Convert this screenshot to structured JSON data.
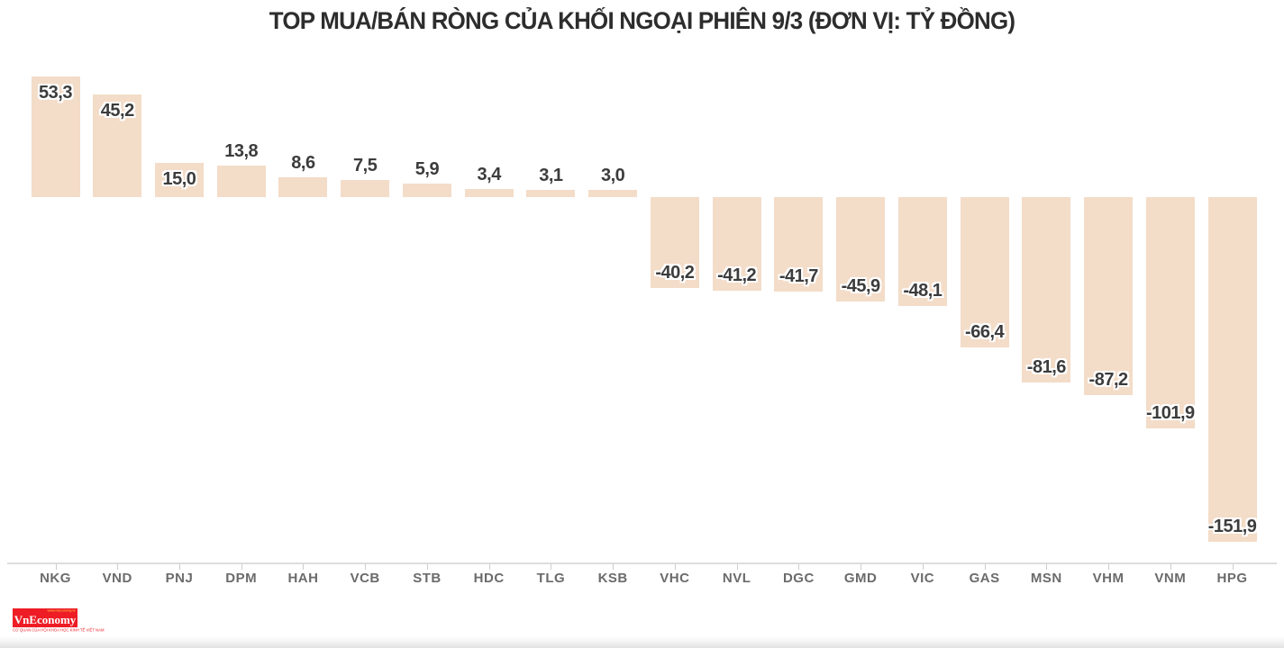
{
  "title": "TOP MUA/BÁN RÒNG CỦA KHỐI NGOẠI PHIÊN 9/3 (ĐƠN VỊ: TỶ ĐỒNG)",
  "chart_data": {
    "type": "bar",
    "title": "TOP MUA/BÁN RÒNG CỦA KHỐI NGOẠI PHIÊN 9/3 (ĐƠN VỊ: TỶ ĐỒNG)",
    "categories": [
      "NKG",
      "VND",
      "PNJ",
      "DPM",
      "HAH",
      "VCB",
      "STB",
      "HDC",
      "TLG",
      "KSB",
      "VHC",
      "NVL",
      "DGC",
      "GMD",
      "VIC",
      "GAS",
      "MSN",
      "VHM",
      "VNM",
      "HPG"
    ],
    "values": [
      53.3,
      45.2,
      15.0,
      13.8,
      8.6,
      7.5,
      5.9,
      3.4,
      3.1,
      3.0,
      -40.2,
      -41.2,
      -41.7,
      -45.9,
      -48.1,
      -66.4,
      -81.6,
      -87.2,
      -101.9,
      -151.9
    ],
    "value_labels": [
      "53,3",
      "45,2",
      "15,0",
      "13,8",
      "8,6",
      "7,5",
      "5,9",
      "3,4",
      "3,1",
      "3,0",
      "-40,2",
      "-41,2",
      "-41,7",
      "-45,9",
      "-48,1",
      "-66,4",
      "-81,6",
      "-87,2",
      "-101,9",
      "-151,9"
    ],
    "xlabel": "",
    "ylabel": "",
    "ylim": [
      -160,
      60
    ],
    "grid": false,
    "legend": false,
    "bar_color": "#f3dcc8",
    "value_label_color": "#3c3c3c",
    "axis_label_color": "#6b6b6b",
    "axis_line_color": "#dcdcdc",
    "tick_color": "#cccccc"
  },
  "footer": {
    "logo_text": "VnEconomy",
    "logo_top_text": "www.vneconomy.vn",
    "logo_tagline": "CƠ QUAN CỦA HỘI KHOA HỌC KINH TẾ VIỆT NAM",
    "logo_bg_color": "#ee1c25",
    "logo_text_color": "#ffffff",
    "logo_top_text_color": "#ffd24a",
    "logo_tagline_color": "#ee1c25"
  }
}
